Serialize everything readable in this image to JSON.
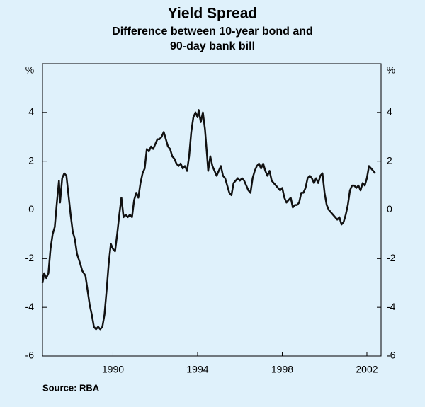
{
  "chart_data": {
    "type": "line",
    "title": "Yield Spread",
    "subtitle": [
      "Difference between 10-year bond and",
      "90-day bank bill"
    ],
    "y_unit": "%",
    "source": "Source: RBA",
    "xlim": [
      1986.67,
      2002.67
    ],
    "xticks": [
      1990,
      1994,
      1998,
      2002
    ],
    "ylim": [
      -6,
      6
    ],
    "yticks": [
      -6,
      -4,
      -2,
      0,
      2,
      4
    ],
    "grid": false,
    "series": [
      {
        "color": "#111111",
        "x": [
          1986.67,
          1986.75,
          1986.85,
          1986.95,
          1987.05,
          1987.15,
          1987.25,
          1987.35,
          1987.45,
          1987.5,
          1987.6,
          1987.7,
          1987.8,
          1987.9,
          1988.0,
          1988.1,
          1988.2,
          1988.3,
          1988.45,
          1988.55,
          1988.7,
          1988.8,
          1988.9,
          1989.0,
          1989.1,
          1989.2,
          1989.3,
          1989.4,
          1989.5,
          1989.6,
          1989.7,
          1989.8,
          1989.9,
          1990.0,
          1990.1,
          1990.2,
          1990.3,
          1990.4,
          1990.5,
          1990.6,
          1990.7,
          1990.8,
          1990.9,
          1991.0,
          1991.1,
          1991.2,
          1991.3,
          1991.4,
          1991.5,
          1991.6,
          1991.7,
          1991.8,
          1991.9,
          1992.0,
          1992.1,
          1992.2,
          1992.3,
          1992.4,
          1992.5,
          1992.6,
          1992.7,
          1992.8,
          1992.9,
          1993.0,
          1993.1,
          1993.2,
          1993.3,
          1993.4,
          1993.5,
          1993.6,
          1993.7,
          1993.8,
          1993.9,
          1994.0,
          1994.05,
          1994.15,
          1994.25,
          1994.35,
          1994.45,
          1994.5,
          1994.6,
          1994.7,
          1994.8,
          1994.9,
          1995.0,
          1995.1,
          1995.2,
          1995.3,
          1995.4,
          1995.5,
          1995.6,
          1995.7,
          1995.8,
          1995.9,
          1996.0,
          1996.1,
          1996.2,
          1996.3,
          1996.4,
          1996.5,
          1996.6,
          1996.7,
          1996.8,
          1996.9,
          1997.0,
          1997.1,
          1997.2,
          1997.3,
          1997.4,
          1997.5,
          1997.6,
          1997.7,
          1997.8,
          1997.9,
          1998.0,
          1998.1,
          1998.2,
          1998.3,
          1998.4,
          1998.5,
          1998.6,
          1998.7,
          1998.8,
          1998.9,
          1999.0,
          1999.1,
          1999.2,
          1999.3,
          1999.4,
          1999.5,
          1999.6,
          1999.7,
          1999.8,
          1999.9,
          2000.0,
          2000.1,
          2000.2,
          2000.3,
          2000.4,
          2000.5,
          2000.6,
          2000.7,
          2000.8,
          2000.9,
          2001.0,
          2001.1,
          2001.2,
          2001.3,
          2001.4,
          2001.5,
          2001.6,
          2001.7,
          2001.8,
          2001.9,
          2002.0,
          2002.1,
          2002.2,
          2002.3,
          2002.4
        ],
        "values": [
          -3.0,
          -2.6,
          -2.8,
          -2.6,
          -1.6,
          -1.0,
          -0.7,
          0.3,
          1.2,
          0.3,
          1.3,
          1.5,
          1.4,
          0.6,
          -0.2,
          -0.9,
          -1.2,
          -1.8,
          -2.2,
          -2.5,
          -2.7,
          -3.3,
          -3.9,
          -4.3,
          -4.8,
          -4.9,
          -4.8,
          -4.9,
          -4.8,
          -4.3,
          -3.3,
          -2.2,
          -1.4,
          -1.6,
          -1.7,
          -1.0,
          -0.2,
          0.5,
          -0.3,
          -0.2,
          -0.3,
          -0.2,
          -0.3,
          0.4,
          0.7,
          0.5,
          1.1,
          1.5,
          1.7,
          2.5,
          2.4,
          2.6,
          2.5,
          2.7,
          2.9,
          2.9,
          3.0,
          3.2,
          2.9,
          2.6,
          2.5,
          2.2,
          2.1,
          1.9,
          1.8,
          1.9,
          1.7,
          1.8,
          1.6,
          2.2,
          3.2,
          3.8,
          4.0,
          3.8,
          4.1,
          3.6,
          4.0,
          3.3,
          2.2,
          1.6,
          2.2,
          1.8,
          1.6,
          1.4,
          1.6,
          1.8,
          1.4,
          1.3,
          1.0,
          0.7,
          0.6,
          1.1,
          1.2,
          1.3,
          1.2,
          1.3,
          1.2,
          1.0,
          0.8,
          0.7,
          1.3,
          1.6,
          1.8,
          1.9,
          1.7,
          1.9,
          1.6,
          1.4,
          1.6,
          1.2,
          1.1,
          1.0,
          0.9,
          0.8,
          0.9,
          0.5,
          0.3,
          0.4,
          0.5,
          0.1,
          0.2,
          0.2,
          0.3,
          0.7,
          0.7,
          0.9,
          1.3,
          1.4,
          1.3,
          1.1,
          1.3,
          1.1,
          1.4,
          1.5,
          0.7,
          0.2,
          0.0,
          -0.1,
          -0.2,
          -0.3,
          -0.4,
          -0.3,
          -0.6,
          -0.5,
          -0.2,
          0.2,
          0.8,
          1.0,
          1.0,
          0.9,
          1.0,
          0.8,
          1.1,
          1.0,
          1.3,
          1.8,
          1.7,
          1.6,
          1.5
        ]
      }
    ]
  }
}
